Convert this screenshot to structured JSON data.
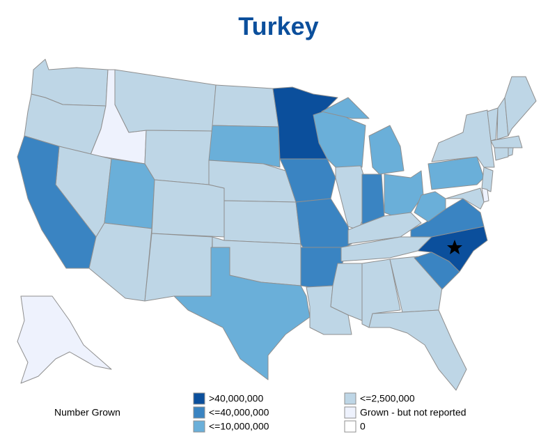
{
  "title": "Turkey",
  "legend_title": "Number Grown",
  "legend": [
    {
      "label": ">40,000,000",
      "color": "#0b4f9c"
    },
    {
      "label": "<=40,000,000",
      "color": "#3a84c2"
    },
    {
      "label": "<=10,000,000",
      "color": "#6aafd9"
    },
    {
      "label": "<=2,500,000",
      "color": "#bed6e6"
    },
    {
      "label": "Grown - but not reported",
      "color": "#eef2fd"
    },
    {
      "label": "0",
      "color": "#ffffff"
    }
  ],
  "regions": [
    {
      "bin": 3
    },
    {
      "bin": 3
    },
    {
      "bin": 4
    },
    {
      "bin": 3
    },
    {
      "bin": 3
    },
    {
      "bin": 3
    },
    {
      "bin": 1
    },
    {
      "bin": 2
    },
    {
      "bin": 3
    },
    {
      "bin": 3
    },
    {
      "bin": 3
    },
    {
      "bin": 3
    },
    {
      "bin": 2
    },
    {
      "bin": 3
    },
    {
      "bin": 3
    },
    {
      "bin": 3
    },
    {
      "bin": 2
    },
    {
      "bin": 0
    },
    {
      "bin": 1
    },
    {
      "bin": 1
    },
    {
      "bin": 1
    },
    {
      "bin": 3
    },
    {
      "bin": 2
    },
    {
      "bin": 3
    },
    {
      "bin": 2
    },
    {
      "bin": 1
    },
    {
      "bin": 2
    },
    {
      "bin": 3
    },
    {
      "bin": 3
    },
    {
      "bin": 3
    },
    {
      "bin": 3
    },
    {
      "bin": 3
    },
    {
      "bin": 3
    },
    {
      "bin": 1
    },
    {
      "bin": 0
    },
    {
      "bin": 1
    },
    {
      "bin": 2
    },
    {
      "bin": 2
    },
    {
      "bin": 3
    },
    {
      "bin": 3
    },
    {
      "bin": 3
    },
    {
      "bin": 3
    },
    {
      "bin": 3
    },
    {
      "bin": 3
    },
    {
      "bin": 3
    },
    {
      "bin": 3
    },
    {
      "bin": 4
    },
    {
      "bin": 3
    },
    {
      "bin": 4
    }
  ]
}
